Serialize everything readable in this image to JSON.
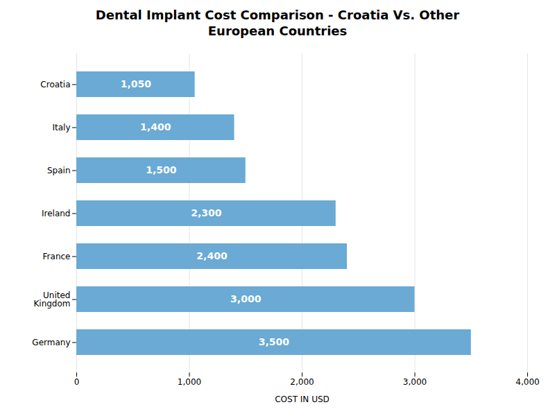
{
  "chart_data": {
    "type": "bar",
    "orientation": "horizontal",
    "title": "Dental Implant Cost Comparison - Croatia Vs. Other\nEuropean Countries",
    "xlabel": "COST IN USD",
    "categories": [
      "Germany",
      "United\nKingdom",
      "France",
      "Ireland",
      "Spain",
      "Italy",
      "Croatia"
    ],
    "values": [
      3500,
      3000,
      2400,
      2300,
      1500,
      1400,
      1050
    ],
    "value_labels": [
      "3,500",
      "3,000",
      "2,400",
      "2,300",
      "1,500",
      "1,400",
      "1,050"
    ],
    "data_labels": true,
    "color": "#6aaad4",
    "xlim": [
      0,
      4000
    ],
    "xticks": [
      0,
      {
        "value": 1000,
        "label": "1,000"
      },
      {
        "value": 2000,
        "label": "2,000"
      },
      {
        "value": 3000,
        "label": "3,000"
      },
      {
        "value": 4000,
        "label": "4,000"
      }
    ],
    "grid": true
  }
}
